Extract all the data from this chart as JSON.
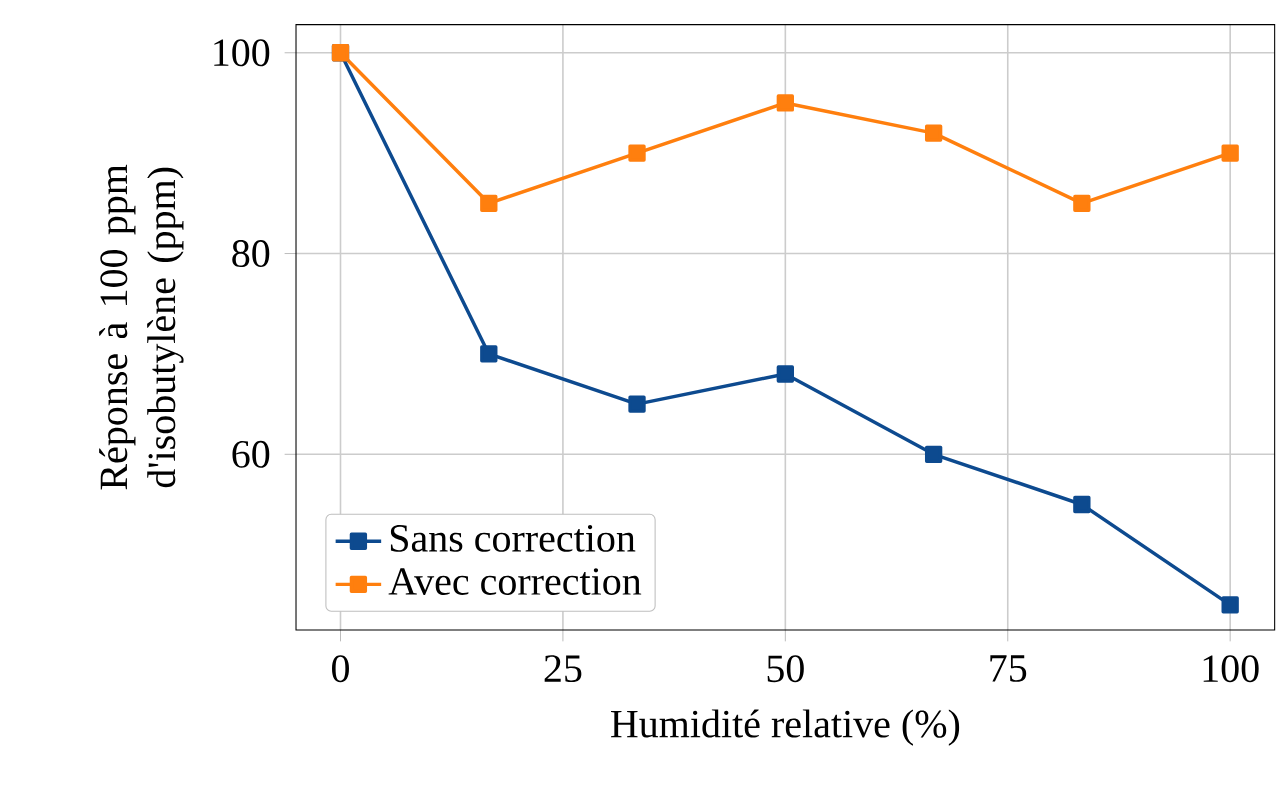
{
  "chart_data": {
    "type": "line",
    "xlabel": "Humidité relative (%)",
    "ylabel": "Réponse à 100 ppm d'isobutylène (ppm)",
    "x": [
      0,
      16.67,
      33.33,
      50,
      66.67,
      83.33,
      100
    ],
    "series": [
      {
        "name": "Sans correction",
        "color": "#0d4a8f",
        "values": [
          100,
          70,
          65,
          68,
          60,
          55,
          45
        ]
      },
      {
        "name": "Avec correction",
        "color": "#ff7f0e",
        "values": [
          100,
          85,
          90,
          95,
          92,
          85,
          90
        ]
      }
    ],
    "xlim": [
      -5,
      105
    ],
    "ylim": [
      42.5,
      102.8
    ],
    "xticks": [
      0,
      25,
      50,
      75,
      100
    ],
    "yticks": [
      60,
      80,
      100
    ],
    "grid": true,
    "legend": "bottom left",
    "marker": "square",
    "line_style": "solid"
  }
}
